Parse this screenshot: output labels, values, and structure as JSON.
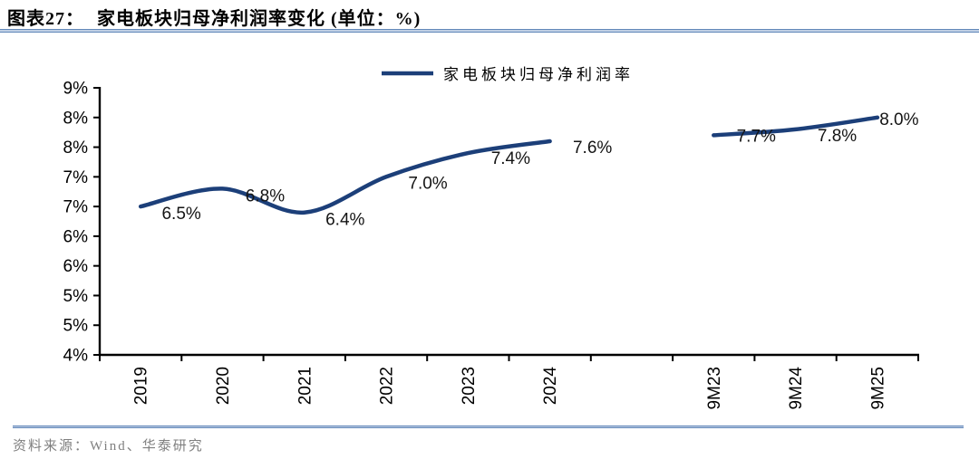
{
  "figure": {
    "title_label": "图表27：",
    "title_text": "家电板块归母净利润率变化 (单位：%)",
    "source": "资料来源：Wind、华泰研究"
  },
  "chart_data": {
    "type": "line",
    "title": "家电板块归母净利润率变化",
    "unit": "%",
    "smooth": true,
    "grid": false,
    "legend_position": "top-center",
    "xlabel": "",
    "ylabel": "",
    "ylim": [
      4.0,
      8.5
    ],
    "ytick_step": 0.5,
    "ytick_labels_bottom_to_top": [
      "4%",
      "5%",
      "5%",
      "6%",
      "6%",
      "7%",
      "7%",
      "8%",
      "8%",
      "9%"
    ],
    "categories": [
      "2019",
      "2020",
      "2021",
      "2022",
      "2023",
      "2024",
      "",
      "9M23",
      "9M24",
      "9M25"
    ],
    "series": [
      {
        "name": "家电板块归母净利润率",
        "color": "#1c3f79",
        "values": [
          6.5,
          6.8,
          6.4,
          7.0,
          7.4,
          7.6,
          null,
          7.7,
          7.8,
          8.0
        ],
        "point_labels": [
          "6.5%",
          "6.8%",
          "6.4%",
          "7.0%",
          "7.4%",
          "7.6%",
          "",
          "7.7%",
          "7.8%",
          "8.0%"
        ]
      }
    ]
  },
  "colors": {
    "line": "#1c3f79",
    "axis": "#000000",
    "separator_edge": "#6288ba",
    "separator_fill": "#c0cfe4",
    "source_text": "#7f7f7f"
  }
}
